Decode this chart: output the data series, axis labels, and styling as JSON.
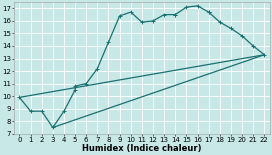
{
  "xlabel": "Humidex (Indice chaleur)",
  "background_color": "#c8e8e8",
  "grid_color": "#ffffff",
  "line_color": "#1a7070",
  "xlim": [
    -0.5,
    22.5
  ],
  "ylim": [
    7,
    17.5
  ],
  "yticks": [
    7,
    8,
    9,
    10,
    11,
    12,
    13,
    14,
    15,
    16,
    17
  ],
  "xticks": [
    0,
    1,
    2,
    3,
    4,
    5,
    6,
    7,
    8,
    9,
    10,
    11,
    12,
    13,
    14,
    15,
    16,
    17,
    18,
    19,
    20,
    21,
    22
  ],
  "curve_x": [
    0,
    1,
    2,
    3,
    4,
    5,
    5,
    6,
    7,
    8,
    9,
    10,
    11,
    12,
    13,
    14,
    14,
    15,
    16,
    17,
    17,
    18,
    19,
    20,
    21,
    22
  ],
  "curve_y": [
    9.9,
    8.8,
    8.8,
    7.5,
    8.8,
    10.5,
    10.8,
    11.0,
    12.2,
    14.3,
    16.4,
    16.7,
    15.9,
    16.0,
    16.5,
    16.5,
    16.5,
    17.1,
    17.2,
    16.7,
    16.7,
    15.9,
    15.4,
    14.8,
    14.0,
    13.3
  ],
  "line2_x": [
    0,
    22
  ],
  "line2_y": [
    9.9,
    13.3
  ],
  "line3_x": [
    3,
    22
  ],
  "line3_y": [
    7.5,
    13.3
  ],
  "tick_fontsize": 5.0,
  "xlabel_fontsize": 6.0,
  "line_width": 0.9,
  "marker_size": 2.5
}
